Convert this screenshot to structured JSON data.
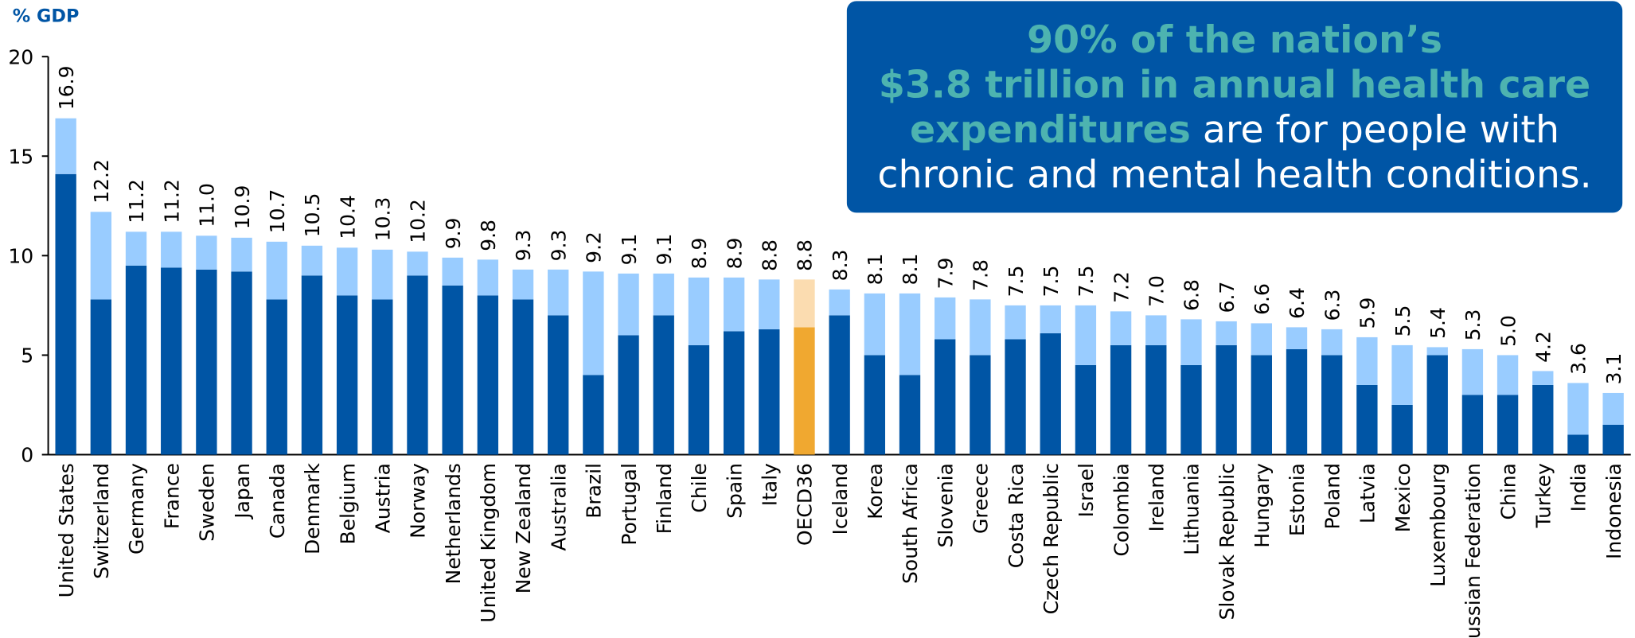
{
  "chart_data": {
    "type": "stacked_bar",
    "y_axis_label": "% GDP",
    "categories": [
      "United States",
      "Switzerland",
      "Germany",
      "France",
      "Sweden",
      "Japan",
      "Canada",
      "Denmark",
      "Belgium",
      "Austria",
      "Norway",
      "Netherlands",
      "United Kingdom",
      "New Zealand",
      "Australia",
      "Brazil",
      "Portugal",
      "Finland",
      "Chile",
      "Spain",
      "Italy",
      "OECD36",
      "Iceland",
      "Korea",
      "South Africa",
      "Slovenia",
      "Greece",
      "Costa Rica",
      "Czech Republic",
      "Israel",
      "Colombia",
      "Ireland",
      "Lithuania",
      "Slovak Republic",
      "Hungary",
      "Estonia",
      "Poland",
      "Latvia",
      "Mexico",
      "Luxembourg",
      "Russian Federation",
      "China",
      "Turkey",
      "India",
      "Indonesia"
    ],
    "series": [
      {
        "color": "#0055a5",
        "highlight_color": "#f0a830",
        "values": [
          14.1,
          7.8,
          9.5,
          9.4,
          9.3,
          9.2,
          7.8,
          9.0,
          8.0,
          7.8,
          9.0,
          8.5,
          8.0,
          7.8,
          7.0,
          4.0,
          6.0,
          7.0,
          5.5,
          6.2,
          6.3,
          6.4,
          7.0,
          5.0,
          4.0,
          5.8,
          5.0,
          5.8,
          6.1,
          4.5,
          5.5,
          5.5,
          4.5,
          5.5,
          5.0,
          5.3,
          5.0,
          3.5,
          2.5,
          5.0,
          3.0,
          3.0,
          3.5,
          1.0,
          1.5
        ]
      },
      {
        "color": "#99ccff",
        "highlight_color": "#fbdcb0",
        "values": [
          2.8,
          4.4,
          1.7,
          1.8,
          1.7,
          1.7,
          2.9,
          1.5,
          2.4,
          2.5,
          1.2,
          1.4,
          1.8,
          1.5,
          2.3,
          5.2,
          3.1,
          2.1,
          3.4,
          2.7,
          2.5,
          2.4,
          1.3,
          3.1,
          4.1,
          2.1,
          2.8,
          1.7,
          1.4,
          3.0,
          1.7,
          1.5,
          2.3,
          1.2,
          1.6,
          1.1,
          1.3,
          2.4,
          3.0,
          0.4,
          2.3,
          2.0,
          0.7,
          2.6,
          1.6
        ]
      }
    ],
    "value_labels": [
      "16.9",
      "12.2",
      "11.2",
      "11.2",
      "11.0",
      "10.9",
      "10.7",
      "10.5",
      "10.4",
      "10.3",
      "10.2",
      "9.9",
      "9.8",
      "9.3",
      "9.3",
      "9.2",
      "9.1",
      "9.1",
      "8.9",
      "8.9",
      "8.8",
      "8.8",
      "8.3",
      "8.1",
      "8.1",
      "7.9",
      "7.8",
      "7.5",
      "7.5",
      "7.5",
      "7.2",
      "7.0",
      "6.8",
      "6.7",
      "6.6",
      "6.4",
      "6.3",
      "5.9",
      "5.5",
      "5.4",
      "5.3",
      "5.0",
      "4.2",
      "3.6",
      "3.1"
    ],
    "highlight_category": "OECD36",
    "ylim": [
      0,
      20
    ],
    "yticks": [
      0,
      5,
      10,
      15,
      20
    ],
    "grid": false,
    "annotation": [
      [
        {
          "text": "90% of the nation’s",
          "emphasis": true
        }
      ],
      [
        {
          "text": "$3.8 trillion in annual health care",
          "emphasis": true
        }
      ],
      [
        {
          "text": "expenditures",
          "emphasis": true
        },
        {
          "text": " are for people with",
          "emphasis": false
        }
      ],
      [
        {
          "text": "chronic and mental health conditions.",
          "emphasis": false
        }
      ]
    ],
    "annotation_box_color": "#0055a5",
    "annotation_emphasis_color": "#4db3b0",
    "annotation_text_color": "#ffffff"
  }
}
